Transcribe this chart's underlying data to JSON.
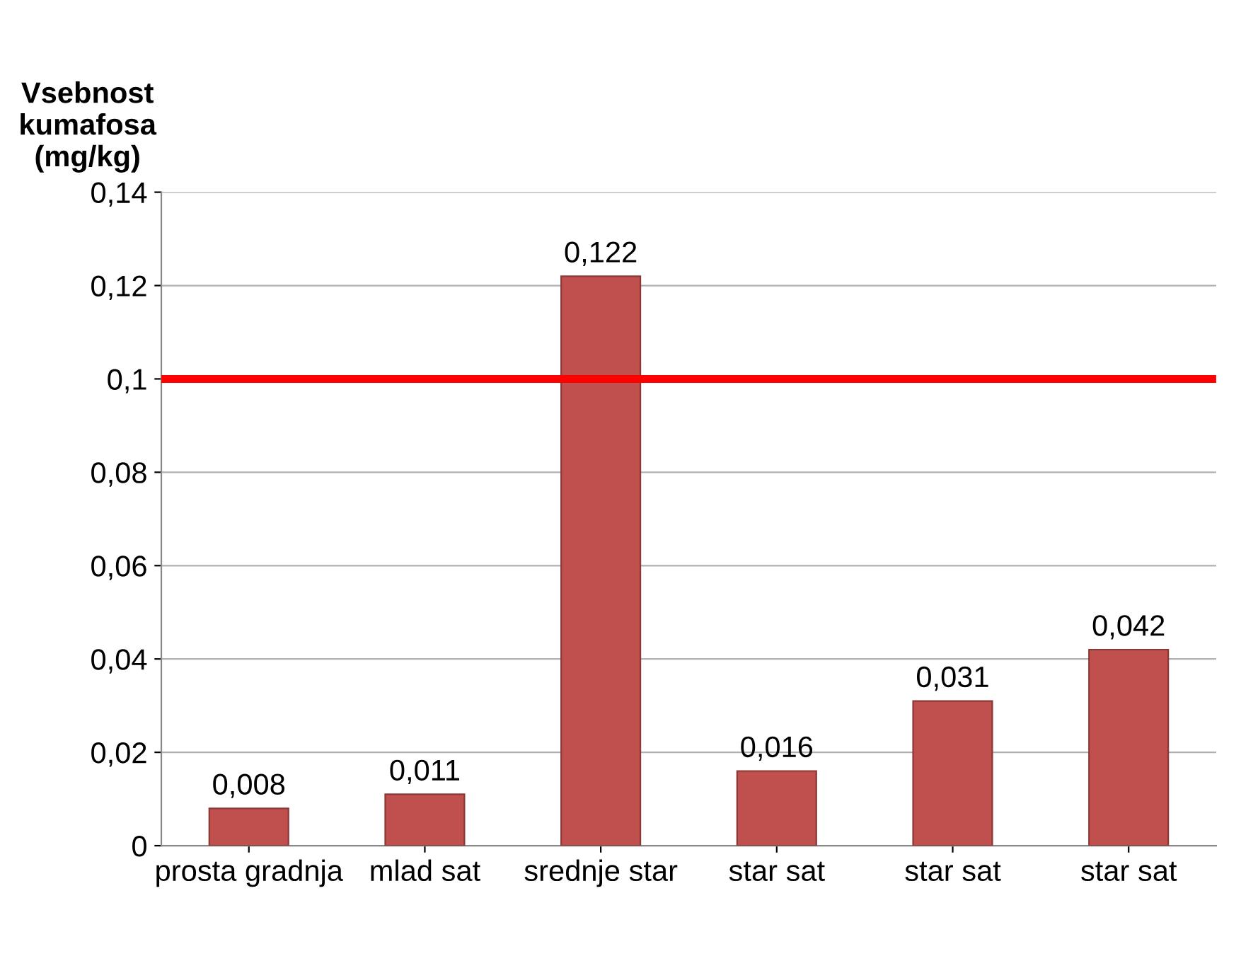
{
  "chart_data": {
    "type": "bar",
    "ylabel": "Vsebnost\nkumafosa\n(mg/kg)",
    "categories": [
      "prosta gradnja",
      "mlad sat",
      "srednje star",
      "star sat",
      "star sat",
      "star sat"
    ],
    "values": [
      0.008,
      0.011,
      0.122,
      0.016,
      0.031,
      0.042
    ],
    "value_labels": [
      "0,008",
      "0,011",
      "0,122",
      "0,016",
      "0,031",
      "0,042"
    ],
    "color": "#c0504d",
    "ylim": [
      0,
      0.14
    ],
    "yticks": [
      {
        "value": 0,
        "label": "0"
      },
      {
        "value": 0.02,
        "label": "0,02"
      },
      {
        "value": 0.04,
        "label": "0,04"
      },
      {
        "value": 0.06,
        "label": "0,06"
      },
      {
        "value": 0.08,
        "label": "0,08"
      },
      {
        "value": 0.1,
        "label": "0,1"
      },
      {
        "value": 0.12,
        "label": "0,12"
      },
      {
        "value": 0.14,
        "label": "0,14"
      }
    ],
    "grid": "y",
    "ref_lines": [
      {
        "axis": "y",
        "value": 0.1,
        "color": "#ff0000"
      }
    ]
  }
}
